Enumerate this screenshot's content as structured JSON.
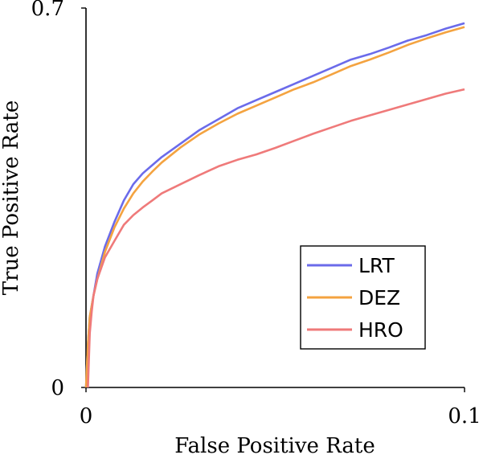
{
  "chart_data": {
    "type": "line",
    "xlabel": "False Positive Rate",
    "ylabel": "True Positive Rate",
    "xlim": [
      0,
      0.1
    ],
    "ylim": [
      0,
      0.7
    ],
    "x_ticks": [
      "0",
      "0.1"
    ],
    "y_ticks": [
      "0",
      "0.7"
    ],
    "grid": false,
    "legend_position": "bottom-right",
    "series": [
      {
        "name": "LRT",
        "color": "#6b6bea",
        "x": [
          0,
          0.0005,
          0.001,
          0.002,
          0.003,
          0.005,
          0.0075,
          0.01,
          0.0125,
          0.015,
          0.0175,
          0.02,
          0.025,
          0.03,
          0.035,
          0.04,
          0.045,
          0.05,
          0.055,
          0.06,
          0.065,
          0.07,
          0.075,
          0.08,
          0.085,
          0.09,
          0.095,
          0.1
        ],
        "y": [
          0,
          0.08,
          0.13,
          0.17,
          0.21,
          0.26,
          0.305,
          0.345,
          0.375,
          0.395,
          0.41,
          0.425,
          0.45,
          0.475,
          0.495,
          0.515,
          0.53,
          0.545,
          0.56,
          0.575,
          0.59,
          0.605,
          0.615,
          0.627,
          0.64,
          0.65,
          0.662,
          0.672
        ]
      },
      {
        "name": "DEZ",
        "color": "#f4a340",
        "x": [
          0,
          0.0005,
          0.001,
          0.002,
          0.003,
          0.005,
          0.0075,
          0.01,
          0.0125,
          0.015,
          0.0175,
          0.02,
          0.025,
          0.03,
          0.035,
          0.04,
          0.045,
          0.05,
          0.055,
          0.06,
          0.065,
          0.07,
          0.075,
          0.08,
          0.085,
          0.09,
          0.095,
          0.1
        ],
        "y": [
          0,
          0.08,
          0.13,
          0.17,
          0.2,
          0.25,
          0.295,
          0.33,
          0.358,
          0.38,
          0.398,
          0.415,
          0.443,
          0.467,
          0.487,
          0.505,
          0.52,
          0.535,
          0.55,
          0.563,
          0.578,
          0.593,
          0.605,
          0.618,
          0.632,
          0.644,
          0.655,
          0.665
        ]
      },
      {
        "name": "HRO",
        "color": "#ef7a7a",
        "x": [
          0.0005,
          0.001,
          0.0015,
          0.002,
          0.003,
          0.005,
          0.0075,
          0.01,
          0.0125,
          0.015,
          0.0175,
          0.02,
          0.025,
          0.03,
          0.035,
          0.04,
          0.045,
          0.05,
          0.055,
          0.06,
          0.065,
          0.07,
          0.075,
          0.08,
          0.085,
          0.09,
          0.095,
          0.1
        ],
        "y": [
          0,
          0.1,
          0.14,
          0.17,
          0.2,
          0.24,
          0.27,
          0.3,
          0.318,
          0.332,
          0.345,
          0.358,
          0.375,
          0.392,
          0.408,
          0.42,
          0.43,
          0.442,
          0.455,
          0.468,
          0.48,
          0.492,
          0.502,
          0.512,
          0.522,
          0.532,
          0.542,
          0.55
        ]
      }
    ]
  }
}
